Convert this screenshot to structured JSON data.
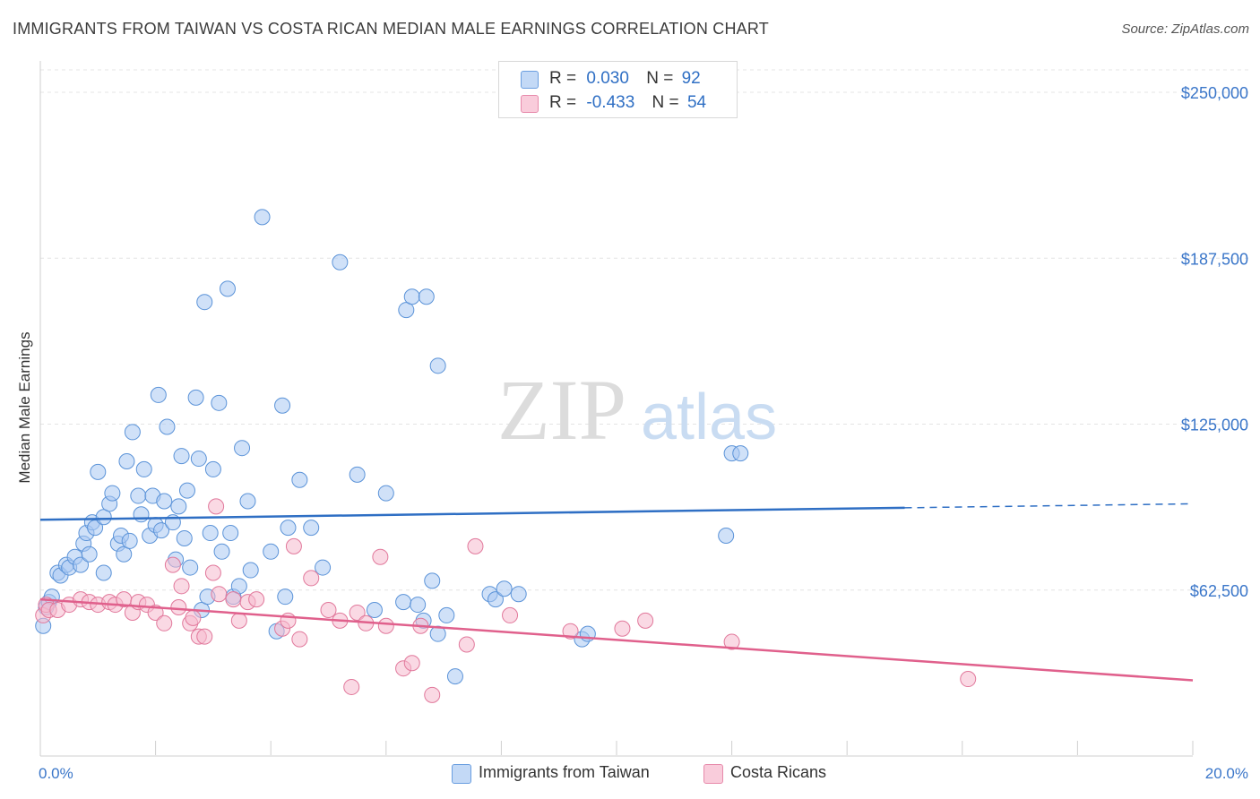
{
  "title": "IMMIGRANTS FROM TAIWAN VS COSTA RICAN MEDIAN MALE EARNINGS CORRELATION CHART",
  "source": "Source: ZipAtlas.com",
  "watermark": {
    "zip": "ZIP",
    "atlas": "atlas"
  },
  "legend": {
    "rows": [
      {
        "r_label": "R =",
        "r_value": "0.030",
        "n_label": "N =",
        "n_value": "92",
        "color": "#a9c8f2"
      },
      {
        "r_label": "R =",
        "r_value": "-0.433",
        "n_label": "N =",
        "n_value": "54",
        "color": "#f6b9cd"
      }
    ]
  },
  "bottom_legend": {
    "taiwan": "Immigrants from Taiwan",
    "costa": "Costa Ricans"
  },
  "chart_data": {
    "type": "scatter",
    "title": "IMMIGRANTS FROM TAIWAN VS COSTA RICAN MEDIAN MALE EARNINGS CORRELATION CHART",
    "xlabel": "",
    "ylabel": "Median Male Earnings",
    "xlim": [
      0,
      20
    ],
    "ylim": [
      0,
      262500
    ],
    "x_tick_labels": [
      "0.0%",
      "20.0%"
    ],
    "y_ticks": [
      62500,
      125000,
      187500,
      250000
    ],
    "y_tick_labels": [
      "$62,500",
      "$125,000",
      "$187,500",
      "$250,000"
    ],
    "grid": true,
    "legend_position": "top-center",
    "series": [
      {
        "name": "Immigrants from Taiwan",
        "color": "#a9c8f2",
        "stroke": "#5b93d8",
        "points": [
          [
            0.05,
            49000
          ],
          [
            0.1,
            56000
          ],
          [
            0.15,
            58000
          ],
          [
            0.2,
            60000
          ],
          [
            0.3,
            69000
          ],
          [
            0.35,
            68000
          ],
          [
            0.45,
            72000
          ],
          [
            0.5,
            71000
          ],
          [
            0.6,
            75000
          ],
          [
            0.7,
            72000
          ],
          [
            0.75,
            80000
          ],
          [
            0.8,
            84000
          ],
          [
            0.85,
            76000
          ],
          [
            0.9,
            88000
          ],
          [
            0.95,
            86000
          ],
          [
            1.0,
            107000
          ],
          [
            1.1,
            90000
          ],
          [
            1.1,
            69000
          ],
          [
            1.2,
            95000
          ],
          [
            1.25,
            99000
          ],
          [
            1.35,
            80000
          ],
          [
            1.4,
            83000
          ],
          [
            1.45,
            76000
          ],
          [
            1.5,
            111000
          ],
          [
            1.55,
            81000
          ],
          [
            1.6,
            122000
          ],
          [
            1.7,
            98000
          ],
          [
            1.75,
            91000
          ],
          [
            1.8,
            108000
          ],
          [
            1.9,
            83000
          ],
          [
            1.95,
            98000
          ],
          [
            2.0,
            87000
          ],
          [
            2.1,
            85000
          ],
          [
            2.05,
            136000
          ],
          [
            2.15,
            96000
          ],
          [
            2.2,
            124000
          ],
          [
            2.3,
            88000
          ],
          [
            2.35,
            74000
          ],
          [
            2.4,
            94000
          ],
          [
            2.45,
            113000
          ],
          [
            2.5,
            82000
          ],
          [
            2.55,
            100000
          ],
          [
            2.6,
            71000
          ],
          [
            2.7,
            135000
          ],
          [
            2.75,
            112000
          ],
          [
            2.8,
            55000
          ],
          [
            2.85,
            171000
          ],
          [
            2.9,
            60000
          ],
          [
            2.95,
            84000
          ],
          [
            3.0,
            108000
          ],
          [
            3.1,
            133000
          ],
          [
            3.15,
            77000
          ],
          [
            3.25,
            176000
          ],
          [
            3.3,
            84000
          ],
          [
            3.35,
            60000
          ],
          [
            3.45,
            64000
          ],
          [
            3.5,
            116000
          ],
          [
            3.6,
            96000
          ],
          [
            3.65,
            70000
          ],
          [
            3.85,
            203000
          ],
          [
            4.0,
            77000
          ],
          [
            4.1,
            47000
          ],
          [
            4.2,
            132000
          ],
          [
            4.25,
            60000
          ],
          [
            4.3,
            86000
          ],
          [
            4.5,
            104000
          ],
          [
            4.7,
            86000
          ],
          [
            4.9,
            71000
          ],
          [
            5.2,
            186000
          ],
          [
            5.5,
            106000
          ],
          [
            5.8,
            55000
          ],
          [
            6.0,
            99000
          ],
          [
            6.3,
            58000
          ],
          [
            6.35,
            168000
          ],
          [
            6.45,
            173000
          ],
          [
            6.55,
            57000
          ],
          [
            6.65,
            51000
          ],
          [
            6.7,
            173000
          ],
          [
            6.8,
            66000
          ],
          [
            6.9,
            147000
          ],
          [
            7.05,
            53000
          ],
          [
            7.2,
            30000
          ],
          [
            7.8,
            61000
          ],
          [
            7.9,
            59000
          ],
          [
            8.05,
            63000
          ],
          [
            8.3,
            61000
          ],
          [
            9.4,
            44000
          ],
          [
            9.5,
            46000
          ],
          [
            11.9,
            83000
          ],
          [
            12.0,
            114000
          ],
          [
            12.15,
            114000
          ],
          [
            6.9,
            46000
          ]
        ]
      },
      {
        "name": "Costa Ricans",
        "color": "#f6b9cd",
        "stroke": "#e1789b",
        "points": [
          [
            0.05,
            53000
          ],
          [
            0.1,
            57000
          ],
          [
            0.15,
            55000
          ],
          [
            0.3,
            55000
          ],
          [
            0.5,
            57000
          ],
          [
            0.7,
            59000
          ],
          [
            0.85,
            58000
          ],
          [
            1.0,
            57000
          ],
          [
            1.2,
            58000
          ],
          [
            1.3,
            57000
          ],
          [
            1.45,
            59000
          ],
          [
            1.6,
            54000
          ],
          [
            1.7,
            58000
          ],
          [
            1.85,
            57000
          ],
          [
            2.0,
            54000
          ],
          [
            2.15,
            50000
          ],
          [
            2.3,
            72000
          ],
          [
            2.4,
            56000
          ],
          [
            2.45,
            64000
          ],
          [
            2.6,
            50000
          ],
          [
            2.65,
            52000
          ],
          [
            2.75,
            45000
          ],
          [
            2.85,
            45000
          ],
          [
            3.0,
            69000
          ],
          [
            3.05,
            94000
          ],
          [
            3.1,
            61000
          ],
          [
            3.35,
            59000
          ],
          [
            3.45,
            51000
          ],
          [
            3.6,
            58000
          ],
          [
            3.75,
            59000
          ],
          [
            4.2,
            48000
          ],
          [
            4.3,
            51000
          ],
          [
            4.4,
            79000
          ],
          [
            4.5,
            44000
          ],
          [
            4.7,
            67000
          ],
          [
            5.0,
            55000
          ],
          [
            5.2,
            51000
          ],
          [
            5.4,
            26000
          ],
          [
            5.5,
            54000
          ],
          [
            5.65,
            50000
          ],
          [
            5.9,
            75000
          ],
          [
            6.0,
            49000
          ],
          [
            6.3,
            33000
          ],
          [
            6.45,
            35000
          ],
          [
            6.6,
            49000
          ],
          [
            6.8,
            23000
          ],
          [
            7.4,
            42000
          ],
          [
            7.55,
            79000
          ],
          [
            8.15,
            53000
          ],
          [
            9.2,
            47000
          ],
          [
            10.1,
            48000
          ],
          [
            10.5,
            51000
          ],
          [
            12.0,
            43000
          ],
          [
            16.1,
            29000
          ]
        ]
      }
    ],
    "trend_lines": [
      {
        "series": "Immigrants from Taiwan",
        "x": [
          0,
          20
        ],
        "y": [
          89000,
          95000
        ],
        "dashed_from_x": 15
      },
      {
        "series": "Costa Ricans",
        "x": [
          0,
          20
        ],
        "y": [
          59000,
          28500
        ]
      }
    ]
  }
}
